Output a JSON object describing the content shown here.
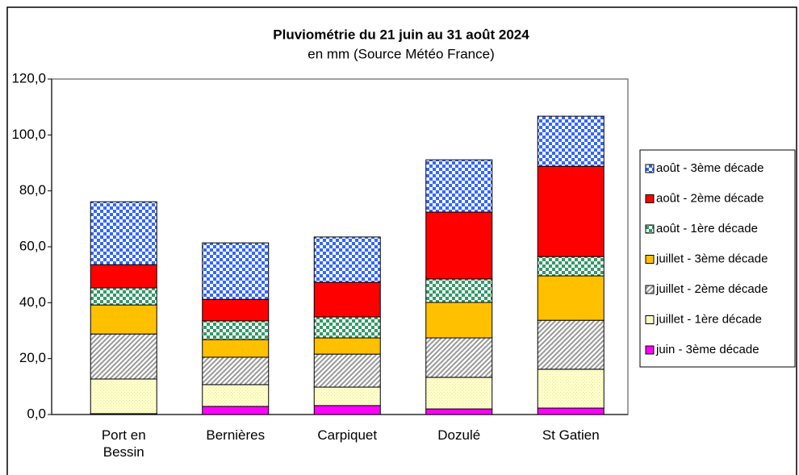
{
  "chart_data": {
    "type": "stacked_bar",
    "title": "Pluviométrie du 21 juin au 31 août 2024",
    "subtitle": "en mm (Source Météo France)",
    "categories": [
      "Port en Bessin",
      "Bernières",
      "Carpiquet",
      "Dozulé",
      "St Gatien"
    ],
    "series": [
      {
        "name": "juin - 3ème décade",
        "color": "#ff00ff",
        "pattern": "solid",
        "values": [
          0.3,
          2.9,
          3.2,
          2.0,
          2.3
        ]
      },
      {
        "name": "juillet - 1ère décade",
        "color": "#ffffcc",
        "pattern": "dots",
        "values": [
          12.4,
          7.8,
          6.6,
          11.3,
          13.9
        ]
      },
      {
        "name": "juillet - 2ème décade",
        "color": "#999999",
        "pattern": "hatch",
        "values": [
          16.1,
          9.8,
          11.8,
          14.1,
          17.5
        ]
      },
      {
        "name": "juillet - 3ème décade",
        "color": "#ffc000",
        "pattern": "solid",
        "values": [
          10.4,
          6.3,
          5.8,
          12.7,
          15.9
        ]
      },
      {
        "name": "août - 1ère décade",
        "color": "#339966",
        "pattern": "checker",
        "values": [
          6.1,
          6.7,
          7.5,
          8.4,
          6.9
        ]
      },
      {
        "name": "août - 2ème décade",
        "color": "#ff0000",
        "pattern": "solid",
        "values": [
          8.3,
          7.7,
          12.4,
          23.9,
          32.3
        ]
      },
      {
        "name": "août - 3ème décade",
        "color": "#3366ff",
        "pattern": "checker",
        "values": [
          22.5,
          20.2,
          16.2,
          18.7,
          17.9
        ]
      }
    ],
    "ylim": [
      0,
      120
    ],
    "yticks": [
      {
        "value": 0,
        "label": "0,0"
      },
      {
        "value": 20,
        "label": "20,0"
      },
      {
        "value": 40,
        "label": "40,0"
      },
      {
        "value": 60,
        "label": "60,0"
      },
      {
        "value": 80,
        "label": "80,0"
      },
      {
        "value": 100,
        "label": "100,0"
      },
      {
        "value": 120,
        "label": "120,0"
      }
    ],
    "legend": "right"
  }
}
